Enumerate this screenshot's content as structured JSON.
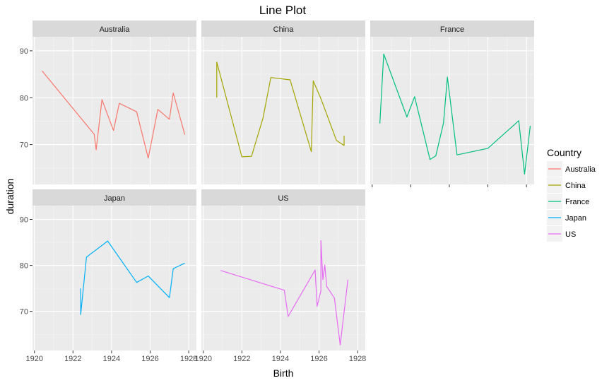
{
  "chart_data": {
    "type": "line",
    "title": "Line Plot",
    "xlabel": "Birth",
    "ylabel": "duration",
    "xlim": [
      1919.9,
      1928.4
    ],
    "ylim": [
      61.5,
      93
    ],
    "x_ticks": [
      1920,
      1922,
      1924,
      1926,
      1928
    ],
    "y_ticks": [
      70,
      80,
      90
    ],
    "grid": true,
    "legend": {
      "title": "Country",
      "position": "right"
    },
    "colors": {
      "Australia": "#F8766D",
      "China": "#A3A500",
      "France": "#00BF7D",
      "Japan": "#00B0F6",
      "US": "#E76BF3"
    },
    "series": [
      {
        "name": "Australia",
        "x": [
          1920.4,
          1923.1,
          1923.2,
          1923.5,
          1924.1,
          1924.4,
          1925.3,
          1925.9,
          1926.4,
          1927.0,
          1927.2,
          1927.8
        ],
        "y": [
          85.7,
          72.2,
          68.9,
          79.6,
          73.0,
          78.8,
          77.0,
          67.1,
          77.5,
          75.4,
          81.0,
          72.1
        ]
      },
      {
        "name": "China",
        "x": [
          1920.7,
          1920.7,
          1922.0,
          1922.5,
          1923.1,
          1923.5,
          1924.5,
          1925.6,
          1925.7,
          1926.1,
          1926.9,
          1927.3,
          1927.3
        ],
        "y": [
          80.0,
          87.6,
          67.4,
          67.5,
          75.7,
          84.3,
          83.8,
          68.5,
          83.6,
          79.8,
          70.9,
          69.8,
          71.9
        ]
      },
      {
        "name": "France",
        "x": [
          1920.4,
          1920.6,
          1921.8,
          1922.2,
          1923.0,
          1923.3,
          1923.7,
          1923.9,
          1924.4,
          1926.0,
          1927.6,
          1927.9,
          1928.2
        ],
        "y": [
          74.5,
          89.3,
          75.9,
          80.2,
          66.8,
          67.6,
          74.6,
          84.4,
          67.8,
          69.2,
          75.1,
          63.7,
          74.0
        ]
      },
      {
        "name": "Japan",
        "x": [
          1922.4,
          1922.4,
          1922.7,
          1923.8,
          1925.3,
          1925.9,
          1927.0,
          1927.2,
          1927.8
        ],
        "y": [
          75.0,
          69.3,
          81.8,
          85.3,
          76.3,
          77.7,
          73.0,
          79.3,
          80.5
        ]
      },
      {
        "name": "US",
        "x": [
          1920.9,
          1924.2,
          1924.4,
          1925.8,
          1925.9,
          1926.1,
          1926.1,
          1926.2,
          1926.3,
          1926.4,
          1926.8,
          1927.1,
          1927.5
        ],
        "y": [
          78.9,
          74.6,
          68.9,
          79.0,
          71.1,
          74.5,
          85.4,
          76.9,
          80.1,
          75.4,
          72.9,
          62.7,
          76.9
        ]
      }
    ]
  }
}
